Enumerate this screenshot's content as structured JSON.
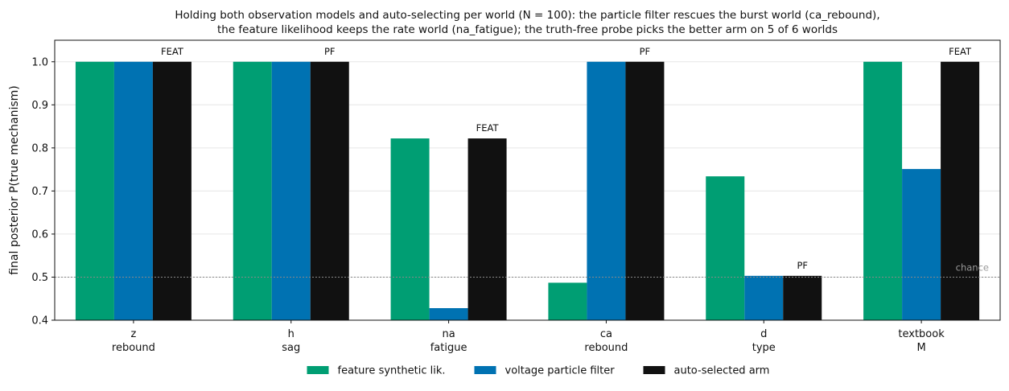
{
  "chart_data": {
    "type": "bar",
    "title_lines": [
      "Holding both observation models and auto-selecting per world (N = 100): the particle filter rescues the burst world (ca_rebound),",
      "the feature likelihood keeps the rate world (na_fatigue); the truth-free probe picks the better arm on 5 of 6 worlds"
    ],
    "ylabel": "final posterior P(true mechanism)",
    "xlabel": "",
    "ylim": [
      0.4,
      1.05
    ],
    "yticks": [
      0.4,
      0.5,
      0.6,
      0.7,
      0.8,
      0.9,
      1.0
    ],
    "grid": "horizontal",
    "categories": [
      [
        "z",
        "rebound"
      ],
      [
        "h",
        "sag"
      ],
      [
        "na",
        "fatigue"
      ],
      [
        "ca",
        "rebound"
      ],
      [
        "d",
        "type"
      ],
      [
        "textbook",
        "M"
      ]
    ],
    "series": [
      {
        "name": "feature synthetic lik.",
        "color": "#009E73",
        "values": [
          1.0,
          1.0,
          0.822,
          0.487,
          0.734,
          1.0
        ]
      },
      {
        "name": "voltage particle filter",
        "color": "#0072B2",
        "values": [
          1.0,
          1.0,
          0.428,
          1.0,
          0.503,
          0.751
        ]
      },
      {
        "name": "auto-selected arm",
        "color": "#111111",
        "values": [
          1.0,
          1.0,
          0.822,
          1.0,
          0.503,
          1.0
        ]
      }
    ],
    "bar_labels": [
      "FEAT",
      "PF",
      "FEAT",
      "PF",
      "PF",
      "FEAT"
    ],
    "reference_line": {
      "value": 0.5,
      "label": "chance",
      "color": "#888888"
    },
    "legend_position": "bottom-center"
  }
}
